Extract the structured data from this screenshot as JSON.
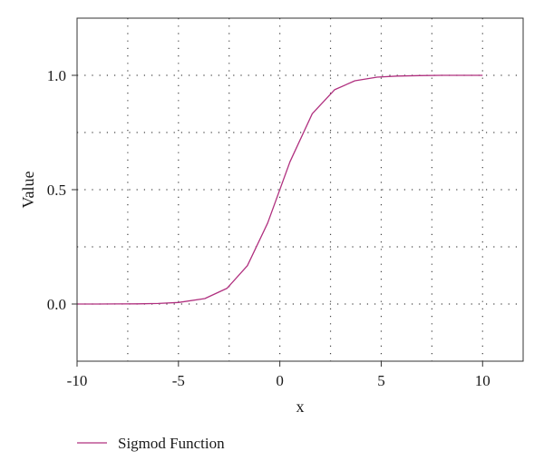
{
  "chart_data": {
    "type": "line",
    "xlabel": "x",
    "ylabel": "Value",
    "xlim": [
      -10,
      12
    ],
    "ylim": [
      -0.25,
      1.25
    ],
    "x_ticks": [
      -10,
      -5,
      0,
      5,
      10
    ],
    "x_tick_labels": [
      "-10",
      "-5",
      "0",
      "5",
      "10"
    ],
    "y_ticks": [
      0.0,
      0.5,
      1.0
    ],
    "y_tick_labels": [
      "0.0",
      "0.5",
      "1.0"
    ],
    "grid": true,
    "legend_position": "bottom-left",
    "series": [
      {
        "name": "Sigmod Function",
        "color": "#b0307f",
        "x": [
          -10,
          -9,
          -8,
          -7,
          -6,
          -5,
          -3.7,
          -2.6,
          -1.6,
          -0.6,
          0.5,
          1.6,
          2.7,
          3.7,
          4.8,
          5.8,
          6.9,
          8,
          9,
          10
        ],
        "y": [
          0.0,
          0.0001,
          0.0003,
          0.0009,
          0.0025,
          0.0067,
          0.024,
          0.069,
          0.168,
          0.354,
          0.622,
          0.832,
          0.937,
          0.976,
          0.992,
          0.997,
          0.999,
          1.0,
          1.0,
          1.0
        ]
      }
    ]
  }
}
